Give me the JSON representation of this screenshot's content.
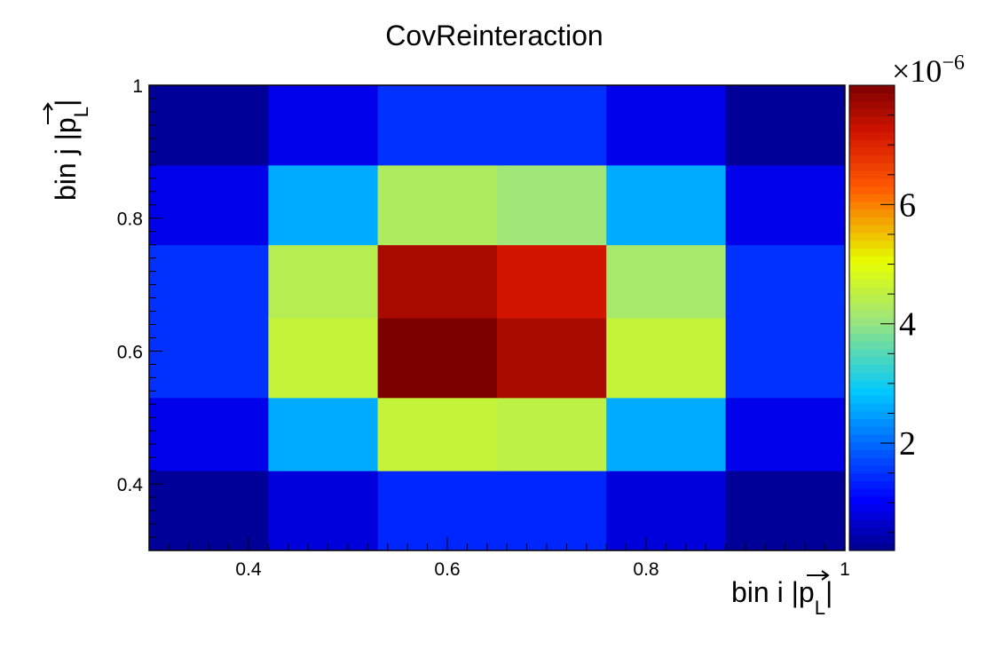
{
  "chart_data": {
    "type": "heatmap",
    "title": "CovReinteraction",
    "xlabel": "bin i |p_L|",
    "ylabel": "bin j |p_L|",
    "xlabel_parts": {
      "pre": "bin i |",
      "p": "p",
      "sub": "L",
      "post": "|"
    },
    "ylabel_parts": {
      "pre": "bin j |",
      "p": "p",
      "sub": "L",
      "post": "|"
    },
    "x_edges": [
      0.3,
      0.42,
      0.53,
      0.65,
      0.76,
      0.88,
      1.0
    ],
    "y_edges": [
      0.3,
      0.42,
      0.53,
      0.65,
      0.76,
      0.88,
      1.0
    ],
    "xlim": [
      0.3,
      1.0
    ],
    "ylim": [
      0.3,
      1.0
    ],
    "x_ticks": [
      {
        "value": 0.4,
        "label": "0.4"
      },
      {
        "value": 0.6,
        "label": "0.6"
      },
      {
        "value": 0.8,
        "label": "0.8"
      },
      {
        "value": 1.0,
        "label": "1"
      }
    ],
    "y_ticks": [
      {
        "value": 0.4,
        "label": "0.4"
      },
      {
        "value": 0.6,
        "label": "0.6"
      },
      {
        "value": 0.8,
        "label": "0.8"
      },
      {
        "value": 1.0,
        "label": "1"
      }
    ],
    "values_rows_bottom_to_top": [
      [
        0.3,
        0.8,
        1.4,
        1.4,
        0.8,
        0.3
      ],
      [
        0.9,
        2.6,
        4.6,
        4.5,
        2.6,
        0.9
      ],
      [
        1.5,
        4.6,
        8.0,
        7.6,
        4.6,
        1.5
      ],
      [
        1.5,
        4.4,
        7.6,
        7.2,
        4.2,
        1.5
      ],
      [
        0.9,
        2.6,
        4.3,
        4.1,
        2.6,
        0.9
      ],
      [
        0.3,
        0.9,
        1.5,
        1.5,
        0.9,
        0.3
      ]
    ],
    "z_unit": "×10",
    "z_exponent": "−6",
    "zlim": [
      0.2,
      8.0
    ],
    "z_ticks": [
      {
        "value": 2,
        "label": "2"
      },
      {
        "value": 4,
        "label": "4"
      },
      {
        "value": 6,
        "label": "6"
      }
    ],
    "colormap": "jet",
    "grid": false
  }
}
